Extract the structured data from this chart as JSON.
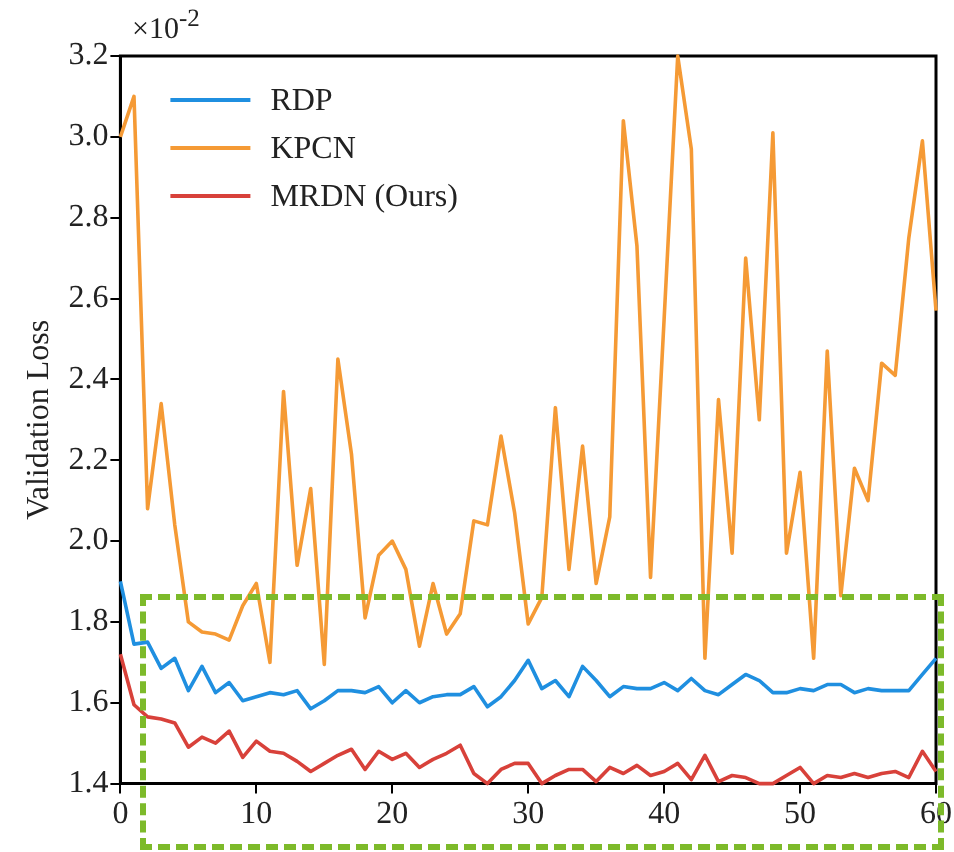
{
  "chart_data": {
    "type": "line",
    "ylabel": "Validation Loss",
    "annotations": [
      "×10$^{-2}$"
    ],
    "x": [
      0,
      1,
      2,
      3,
      4,
      5,
      6,
      7,
      8,
      9,
      10,
      11,
      12,
      13,
      14,
      15,
      16,
      17,
      18,
      19,
      20,
      21,
      22,
      23,
      24,
      25,
      26,
      27,
      28,
      29,
      30,
      31,
      32,
      33,
      34,
      35,
      36,
      37,
      38,
      39,
      40,
      41,
      42,
      43,
      44,
      45,
      46,
      47,
      48,
      49,
      50,
      51,
      52,
      53,
      54,
      55,
      56,
      57,
      58,
      59,
      60
    ],
    "xlim": [
      0,
      60
    ],
    "xticks": [
      0,
      10,
      20,
      30,
      40,
      50,
      60
    ],
    "ylim": [
      1.4,
      3.2
    ],
    "yticks": [
      1.4,
      1.6,
      1.8,
      {
        "value": 2,
        "label": "2.0"
      },
      2.2,
      2.4,
      2.6,
      2.8,
      {
        "value": 3,
        "label": "3.0"
      },
      3.2
    ],
    "grid": false,
    "legend": "top left",
    "marker": "none",
    "line_style": "solid",
    "series": [
      {
        "name": "RDP",
        "color": "#1f8fe0",
        "values": [
          1.9,
          1.745,
          1.75,
          1.685,
          1.71,
          1.63,
          1.69,
          1.625,
          1.65,
          1.605,
          1.615,
          1.625,
          1.62,
          1.63,
          1.585,
          1.605,
          1.63,
          1.63,
          1.625,
          1.64,
          1.6,
          1.63,
          1.6,
          1.615,
          1.62,
          1.62,
          1.64,
          1.59,
          1.615,
          1.655,
          1.705,
          1.635,
          1.655,
          1.615,
          1.69,
          1.655,
          1.615,
          1.64,
          1.635,
          1.635,
          1.65,
          1.63,
          1.66,
          1.63,
          1.62,
          1.645,
          1.67,
          1.655,
          1.625,
          1.625,
          1.635,
          1.63,
          1.645,
          1.645,
          1.625,
          1.635,
          1.63,
          1.63,
          1.63,
          1.67,
          1.71
        ]
      },
      {
        "name": "KPCN",
        "color": "#f59a35",
        "values": [
          3.0,
          3.1,
          2.08,
          2.34,
          2.04,
          1.8,
          1.775,
          1.77,
          1.755,
          1.84,
          1.895,
          1.7,
          2.37,
          1.94,
          2.13,
          1.695,
          2.45,
          2.215,
          1.81,
          1.965,
          2.0,
          1.93,
          1.74,
          1.895,
          1.77,
          1.82,
          2.05,
          2.04,
          2.26,
          2.07,
          1.795,
          1.86,
          2.33,
          1.93,
          2.235,
          1.895,
          2.06,
          3.04,
          2.73,
          1.91,
          2.55,
          3.2,
          2.97,
          1.71,
          2.35,
          1.97,
          2.7,
          2.3,
          3.01,
          1.97,
          2.17,
          1.71,
          2.47,
          1.865,
          2.18,
          2.1,
          2.44,
          2.41,
          2.75,
          2.99,
          2.57
        ]
      },
      {
        "name": "MRDN (Ours)",
        "color": "#d8413a",
        "values": [
          1.72,
          1.595,
          1.565,
          1.56,
          1.55,
          1.49,
          1.515,
          1.5,
          1.53,
          1.465,
          1.505,
          1.48,
          1.475,
          1.455,
          1.43,
          1.45,
          1.47,
          1.485,
          1.435,
          1.48,
          1.46,
          1.475,
          1.44,
          1.46,
          1.475,
          1.495,
          1.425,
          1.4,
          1.435,
          1.45,
          1.45,
          1.4,
          1.42,
          1.435,
          1.435,
          1.405,
          1.44,
          1.425,
          1.445,
          1.42,
          1.43,
          1.45,
          1.41,
          1.47,
          1.405,
          1.42,
          1.415,
          1.4,
          1.4,
          1.42,
          1.44,
          1.4,
          1.42,
          1.415,
          1.425,
          1.415,
          1.425,
          1.43,
          1.415,
          1.48,
          1.43
        ]
      }
    ]
  }
}
